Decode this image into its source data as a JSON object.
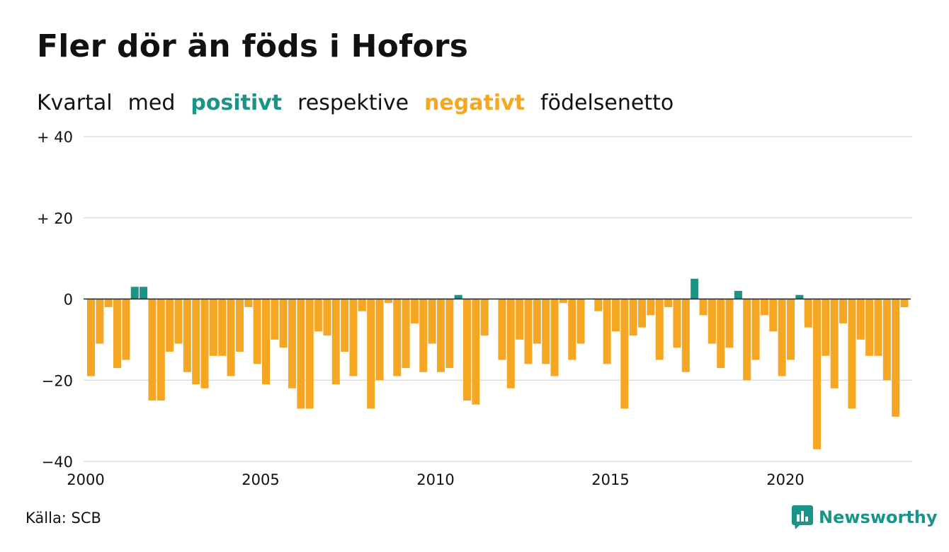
{
  "title": "Fler dör än föds i Hofors",
  "subtitle": {
    "w1": "Kvartal",
    "w2": "med",
    "positive": "positivt",
    "w3": "respektive",
    "negative": "negativt",
    "w4": "födelsenetto"
  },
  "source": "Källa: SCB",
  "brand": "Newsworthy",
  "colors": {
    "positive": "#1a9486",
    "negative": "#f5a623",
    "grid": "#dedede",
    "zero_line": "#222222",
    "logo": "#1a9486"
  },
  "chart_data": {
    "type": "bar",
    "x_start_year": 2000,
    "periods_per_year": 4,
    "xticks": [
      "2000",
      "2005",
      "2010",
      "2015",
      "2020"
    ],
    "yticks": [
      "+ 40",
      "+ 20",
      "0",
      "−20",
      "−40"
    ],
    "ylim": [
      -40,
      40
    ],
    "grid": true,
    "values": [
      -19,
      -11,
      -2,
      -17,
      -15,
      3,
      3,
      -25,
      -25,
      -13,
      -11,
      -18,
      -21,
      -22,
      -14,
      -14,
      -19,
      -13,
      -2,
      -16,
      -21,
      -10,
      -12,
      -22,
      -27,
      -27,
      -8,
      -9,
      -21,
      -13,
      -19,
      -3,
      -27,
      -20,
      -1,
      -19,
      -17,
      -6,
      -18,
      -11,
      -18,
      -17,
      1,
      -25,
      -26,
      -9,
      0,
      -15,
      -22,
      -10,
      -16,
      -11,
      -16,
      -19,
      -1,
      -15,
      -11,
      0,
      -3,
      -16,
      -8,
      -27,
      -9,
      -7,
      -4,
      -15,
      -2,
      -12,
      -18,
      5,
      -4,
      -11,
      -17,
      -12,
      2,
      -20,
      -15,
      -4,
      -8,
      -19,
      -15,
      1,
      -7,
      -37,
      -14,
      -22,
      -6,
      -27,
      -10,
      -14,
      -14,
      -20,
      -29,
      -2
    ]
  }
}
